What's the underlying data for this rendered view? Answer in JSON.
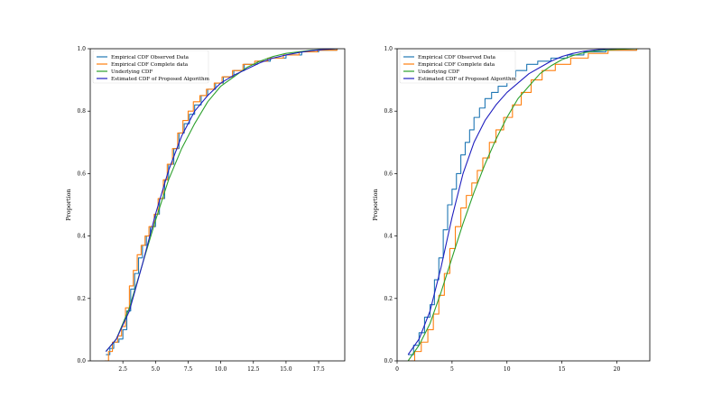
{
  "chart_data": [
    {
      "type": "line",
      "ylabel": "Proportion",
      "xlim": [
        0.0,
        19.5
      ],
      "ylim": [
        0.0,
        1.0
      ],
      "xticks": [
        "2.5",
        "5.0",
        "7.5",
        "10.0",
        "12.5",
        "15.0",
        "17.5"
      ],
      "xtick_values": [
        2.5,
        5.0,
        7.5,
        10.0,
        12.5,
        15.0,
        17.5
      ],
      "yticks": [
        "0.0",
        "0.2",
        "0.4",
        "0.6",
        "0.8",
        "1.0"
      ],
      "ytick_values": [
        0.0,
        0.2,
        0.4,
        0.6,
        0.8,
        1.0
      ],
      "legend_position": "top-left",
      "series": [
        {
          "name": "Empirical CDF Observed Data",
          "color": "#1f77b4",
          "style": "step",
          "x": [
            1.2,
            1.5,
            1.8,
            2.2,
            2.5,
            2.8,
            3.1,
            3.4,
            3.7,
            4.0,
            4.3,
            4.6,
            5.0,
            5.3,
            5.7,
            6.0,
            6.4,
            6.8,
            7.2,
            7.6,
            8.0,
            8.5,
            9.0,
            9.6,
            10.2,
            11.0,
            11.8,
            12.8,
            13.8,
            15.0,
            16.2,
            17.5,
            18.9
          ],
          "y": [
            0.02,
            0.04,
            0.06,
            0.07,
            0.1,
            0.16,
            0.23,
            0.28,
            0.33,
            0.37,
            0.4,
            0.43,
            0.47,
            0.52,
            0.58,
            0.63,
            0.68,
            0.73,
            0.76,
            0.79,
            0.82,
            0.85,
            0.87,
            0.89,
            0.91,
            0.93,
            0.95,
            0.96,
            0.97,
            0.98,
            0.99,
            0.995,
            1.0
          ]
        },
        {
          "name": "Empirical CDF Complete data",
          "color": "#ff7f0e",
          "style": "step",
          "x": [
            1.1,
            1.4,
            1.7,
            2.1,
            2.4,
            2.7,
            3.0,
            3.3,
            3.6,
            3.9,
            4.2,
            4.5,
            4.9,
            5.2,
            5.6,
            5.9,
            6.3,
            6.7,
            7.1,
            7.5,
            7.9,
            8.4,
            8.9,
            9.5,
            10.1,
            10.9,
            11.7,
            12.6,
            13.6,
            14.8,
            16.0,
            17.4,
            18.9
          ],
          "y": [
            0.0,
            0.03,
            0.06,
            0.08,
            0.11,
            0.17,
            0.24,
            0.29,
            0.34,
            0.37,
            0.4,
            0.43,
            0.47,
            0.52,
            0.58,
            0.63,
            0.68,
            0.73,
            0.77,
            0.8,
            0.83,
            0.85,
            0.87,
            0.89,
            0.91,
            0.93,
            0.95,
            0.96,
            0.97,
            0.98,
            0.99,
            0.995,
            1.0
          ]
        },
        {
          "name": "Underlying CDF",
          "color": "#2ca02c",
          "style": "smooth",
          "x": [
            1.2,
            2.0,
            3.0,
            4.0,
            5.0,
            6.0,
            7.0,
            8.0,
            9.0,
            10.0,
            11.0,
            12.0,
            13.0,
            14.0,
            15.0,
            16.0,
            17.0,
            18.0,
            19.0
          ],
          "y": [
            0.03,
            0.07,
            0.17,
            0.31,
            0.45,
            0.58,
            0.68,
            0.76,
            0.83,
            0.88,
            0.91,
            0.94,
            0.96,
            0.975,
            0.985,
            0.99,
            0.995,
            0.998,
            1.0
          ]
        },
        {
          "name": "Estimated CDF of Proposed Algorithm",
          "color": "#1f1fbf",
          "style": "smooth",
          "x": [
            1.2,
            2.0,
            3.0,
            4.0,
            5.0,
            6.0,
            7.0,
            8.0,
            9.0,
            10.0,
            11.0,
            12.0,
            13.0,
            14.0,
            15.0,
            16.0,
            17.0,
            18.0,
            19.0
          ],
          "y": [
            0.03,
            0.07,
            0.16,
            0.31,
            0.47,
            0.61,
            0.72,
            0.8,
            0.85,
            0.89,
            0.915,
            0.935,
            0.955,
            0.97,
            0.98,
            0.988,
            0.994,
            0.998,
            1.0
          ]
        }
      ]
    },
    {
      "type": "line",
      "ylabel": "Proportion",
      "xlim": [
        0.0,
        23.0
      ],
      "ylim": [
        0.0,
        1.0
      ],
      "xticks": [
        "0",
        "5",
        "10",
        "15",
        "20"
      ],
      "xtick_values": [
        0,
        5,
        10,
        15,
        20
      ],
      "yticks": [
        "0.0",
        "0.2",
        "0.4",
        "0.6",
        "0.8",
        "1.0"
      ],
      "ytick_values": [
        0.0,
        0.2,
        0.4,
        0.6,
        0.8,
        1.0
      ],
      "legend_position": "top-left",
      "series": [
        {
          "name": "Empirical CDF Observed Data",
          "color": "#1f77b4",
          "style": "step",
          "x": [
            1.0,
            1.5,
            2.0,
            2.5,
            3.0,
            3.4,
            3.8,
            4.2,
            4.6,
            5.0,
            5.4,
            5.8,
            6.2,
            6.6,
            7.0,
            7.5,
            8.0,
            8.6,
            9.2,
            10.0,
            10.8,
            11.8,
            12.8,
            14.0,
            15.5,
            17.0,
            19.0,
            21.8
          ],
          "y": [
            0.02,
            0.05,
            0.09,
            0.14,
            0.18,
            0.26,
            0.33,
            0.42,
            0.5,
            0.55,
            0.6,
            0.66,
            0.7,
            0.74,
            0.78,
            0.81,
            0.84,
            0.86,
            0.88,
            0.91,
            0.93,
            0.95,
            0.96,
            0.97,
            0.98,
            0.99,
            0.995,
            1.0
          ]
        },
        {
          "name": "Empirical CDF Complete data",
          "color": "#ff7f0e",
          "style": "step",
          "x": [
            1.0,
            1.6,
            2.2,
            2.8,
            3.3,
            3.8,
            4.3,
            4.8,
            5.3,
            5.8,
            6.3,
            6.8,
            7.3,
            7.8,
            8.4,
            9.0,
            9.7,
            10.5,
            11.3,
            12.2,
            13.2,
            14.4,
            15.8,
            17.4,
            19.2,
            21.8
          ],
          "y": [
            0.0,
            0.03,
            0.06,
            0.1,
            0.15,
            0.21,
            0.28,
            0.36,
            0.43,
            0.49,
            0.53,
            0.57,
            0.61,
            0.65,
            0.7,
            0.74,
            0.78,
            0.82,
            0.86,
            0.9,
            0.93,
            0.95,
            0.97,
            0.985,
            0.995,
            1.0
          ]
        },
        {
          "name": "Underlying CDF",
          "color": "#2ca02c",
          "style": "smooth",
          "x": [
            1.0,
            2.0,
            3.0,
            4.0,
            5.0,
            6.0,
            7.0,
            8.0,
            9.0,
            10.0,
            11.0,
            12.0,
            13.0,
            14.0,
            15.0,
            16.0,
            17.0,
            18.0,
            19.0,
            20.0,
            21.0,
            22.0
          ],
          "y": [
            0.0,
            0.05,
            0.12,
            0.22,
            0.33,
            0.44,
            0.54,
            0.63,
            0.71,
            0.78,
            0.84,
            0.88,
            0.92,
            0.945,
            0.965,
            0.978,
            0.987,
            0.993,
            0.996,
            0.998,
            0.999,
            1.0
          ]
        },
        {
          "name": "Estimated CDF of Proposed Algorithm",
          "color": "#1f1fbf",
          "style": "smooth",
          "x": [
            1.0,
            2.0,
            3.0,
            4.0,
            5.0,
            6.0,
            7.0,
            8.0,
            9.0,
            10.0,
            11.0,
            12.0,
            13.0,
            14.0,
            15.0,
            16.0,
            17.0,
            18.0,
            19.0,
            20.0
          ],
          "y": [
            0.02,
            0.07,
            0.16,
            0.3,
            0.46,
            0.6,
            0.7,
            0.77,
            0.82,
            0.86,
            0.89,
            0.92,
            0.94,
            0.96,
            0.975,
            0.985,
            0.992,
            0.996,
            0.999,
            1.0
          ]
        }
      ]
    }
  ]
}
